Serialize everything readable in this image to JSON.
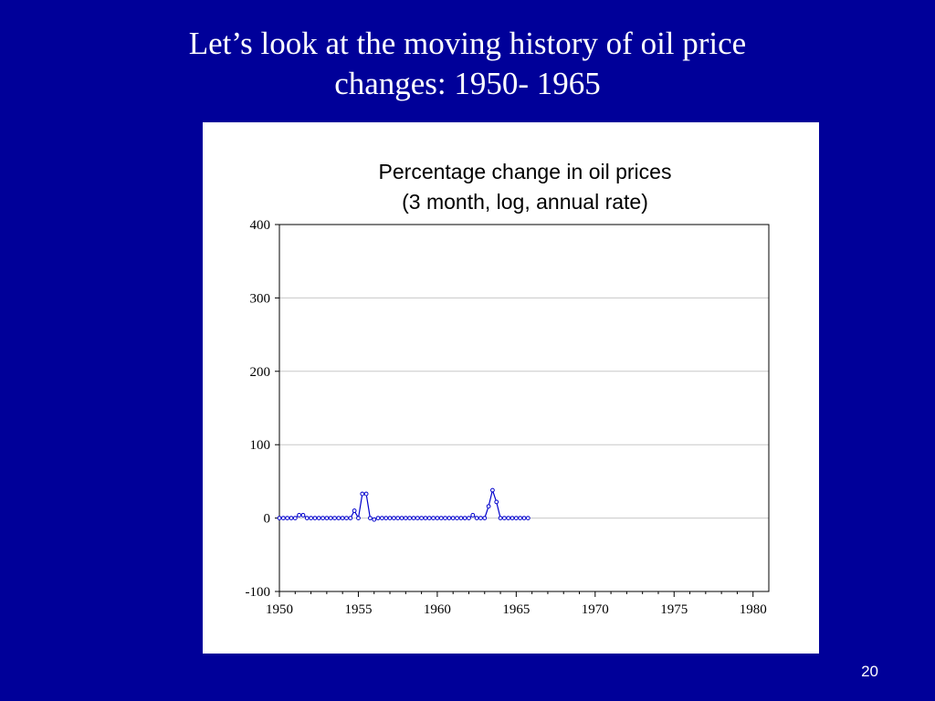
{
  "slide": {
    "title_line1": "Let’s look at the moving history of oil price",
    "title_line2": "changes: 1950- 1965",
    "page_number": "20"
  },
  "chart_data": {
    "type": "line",
    "title_line1": "Percentage change in oil prices",
    "title_line2": "(3 month, log, annual rate)",
    "xlabel": "",
    "ylabel": "",
    "xlim": [
      1950,
      1981
    ],
    "ylim": [
      -100,
      400
    ],
    "xticks": [
      1950,
      1955,
      1960,
      1965,
      1970,
      1975,
      1980
    ],
    "yticks": [
      -100,
      0,
      100,
      200,
      300,
      400
    ],
    "grid": true,
    "line_color": "#0000cc",
    "marker": "circle",
    "series": [
      {
        "name": "",
        "x": [
          1950.0,
          1950.25,
          1950.5,
          1950.75,
          1951.0,
          1951.25,
          1951.5,
          1951.75,
          1952.0,
          1952.25,
          1952.5,
          1952.75,
          1953.0,
          1953.25,
          1953.5,
          1953.75,
          1954.0,
          1954.25,
          1954.5,
          1954.75,
          1955.0,
          1955.25,
          1955.5,
          1955.75,
          1956.0,
          1956.25,
          1956.5,
          1956.75,
          1957.0,
          1957.25,
          1957.5,
          1957.75,
          1958.0,
          1958.25,
          1958.5,
          1958.75,
          1959.0,
          1959.25,
          1959.5,
          1959.75,
          1960.0,
          1960.25,
          1960.5,
          1960.75,
          1961.0,
          1961.25,
          1961.5,
          1961.75,
          1962.0,
          1962.25,
          1962.5,
          1962.75,
          1963.0,
          1963.25,
          1963.5,
          1963.75,
          1964.0,
          1964.25,
          1964.5,
          1964.75,
          1965.0,
          1965.25,
          1965.5,
          1965.75
        ],
        "values": [
          0,
          0,
          0,
          0,
          0,
          4,
          4,
          0,
          0,
          0,
          0,
          0,
          0,
          0,
          0,
          0,
          0,
          0,
          0,
          10,
          0,
          33,
          33,
          0,
          -2,
          0,
          0,
          0,
          0,
          0,
          0,
          0,
          0,
          0,
          0,
          0,
          0,
          0,
          0,
          0,
          0,
          0,
          0,
          0,
          0,
          0,
          0,
          0,
          0,
          4,
          0,
          0,
          0,
          16,
          38,
          22,
          0,
          0,
          0,
          0,
          0,
          0,
          0,
          0
        ]
      }
    ]
  }
}
